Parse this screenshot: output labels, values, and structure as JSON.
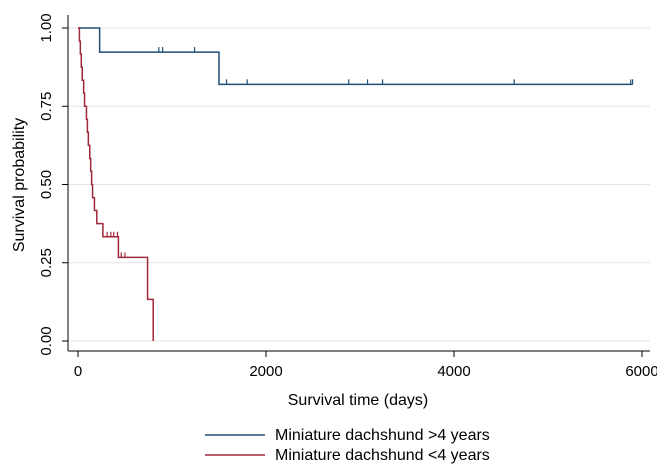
{
  "chart_data": {
    "type": "line",
    "subtype": "kaplan-meier-step",
    "xlabel": "Survival time (days)",
    "ylabel": "Survival probability",
    "xlim": [
      0,
      6000
    ],
    "ylim": [
      0,
      1
    ],
    "x_ticks": [
      0,
      2000,
      4000,
      6000
    ],
    "y_ticks": [
      0,
      0.25,
      0.5,
      0.75,
      1.0
    ],
    "y_tick_labels": [
      "0.00",
      "0.25",
      "0.50",
      "0.75",
      "1.00"
    ],
    "grid": "horizontal",
    "legend_position": "bottom",
    "series": [
      {
        "name": "Miniature dachshund >4 years",
        "color": "#1f4e79",
        "steps": [
          [
            0,
            1.0
          ],
          [
            230,
            1.0
          ],
          [
            230,
            0.923
          ],
          [
            1500,
            0.923
          ],
          [
            1500,
            0.82
          ],
          [
            5900,
            0.82
          ]
        ],
        "censored": [
          [
            860,
            0.923
          ],
          [
            900,
            0.923
          ],
          [
            1240,
            0.923
          ],
          [
            1580,
            0.82
          ],
          [
            1800,
            0.82
          ],
          [
            2880,
            0.82
          ],
          [
            3080,
            0.82
          ],
          [
            3240,
            0.82
          ],
          [
            4640,
            0.82
          ],
          [
            5880,
            0.82
          ],
          [
            5900,
            0.82
          ]
        ]
      },
      {
        "name": "Miniature dachshund <4 years",
        "color": "#a0283b",
        "steps": [
          [
            0,
            1.0
          ],
          [
            15,
            1.0
          ],
          [
            15,
            0.958
          ],
          [
            25,
            0.958
          ],
          [
            25,
            0.917
          ],
          [
            35,
            0.917
          ],
          [
            35,
            0.875
          ],
          [
            45,
            0.875
          ],
          [
            45,
            0.833
          ],
          [
            60,
            0.833
          ],
          [
            60,
            0.792
          ],
          [
            70,
            0.792
          ],
          [
            70,
            0.75
          ],
          [
            90,
            0.75
          ],
          [
            90,
            0.708
          ],
          [
            100,
            0.708
          ],
          [
            100,
            0.667
          ],
          [
            110,
            0.667
          ],
          [
            110,
            0.625
          ],
          [
            125,
            0.625
          ],
          [
            125,
            0.583
          ],
          [
            135,
            0.583
          ],
          [
            135,
            0.542
          ],
          [
            145,
            0.542
          ],
          [
            145,
            0.5
          ],
          [
            155,
            0.5
          ],
          [
            155,
            0.458
          ],
          [
            175,
            0.458
          ],
          [
            175,
            0.417
          ],
          [
            200,
            0.417
          ],
          [
            200,
            0.375
          ],
          [
            265,
            0.375
          ],
          [
            265,
            0.333
          ],
          [
            430,
            0.333
          ],
          [
            430,
            0.267
          ],
          [
            740,
            0.267
          ],
          [
            740,
            0.133
          ],
          [
            800,
            0.133
          ],
          [
            800,
            0.0
          ]
        ],
        "censored": [
          [
            310,
            0.333
          ],
          [
            350,
            0.333
          ],
          [
            380,
            0.333
          ],
          [
            420,
            0.333
          ],
          [
            460,
            0.267
          ],
          [
            500,
            0.267
          ]
        ]
      }
    ]
  }
}
